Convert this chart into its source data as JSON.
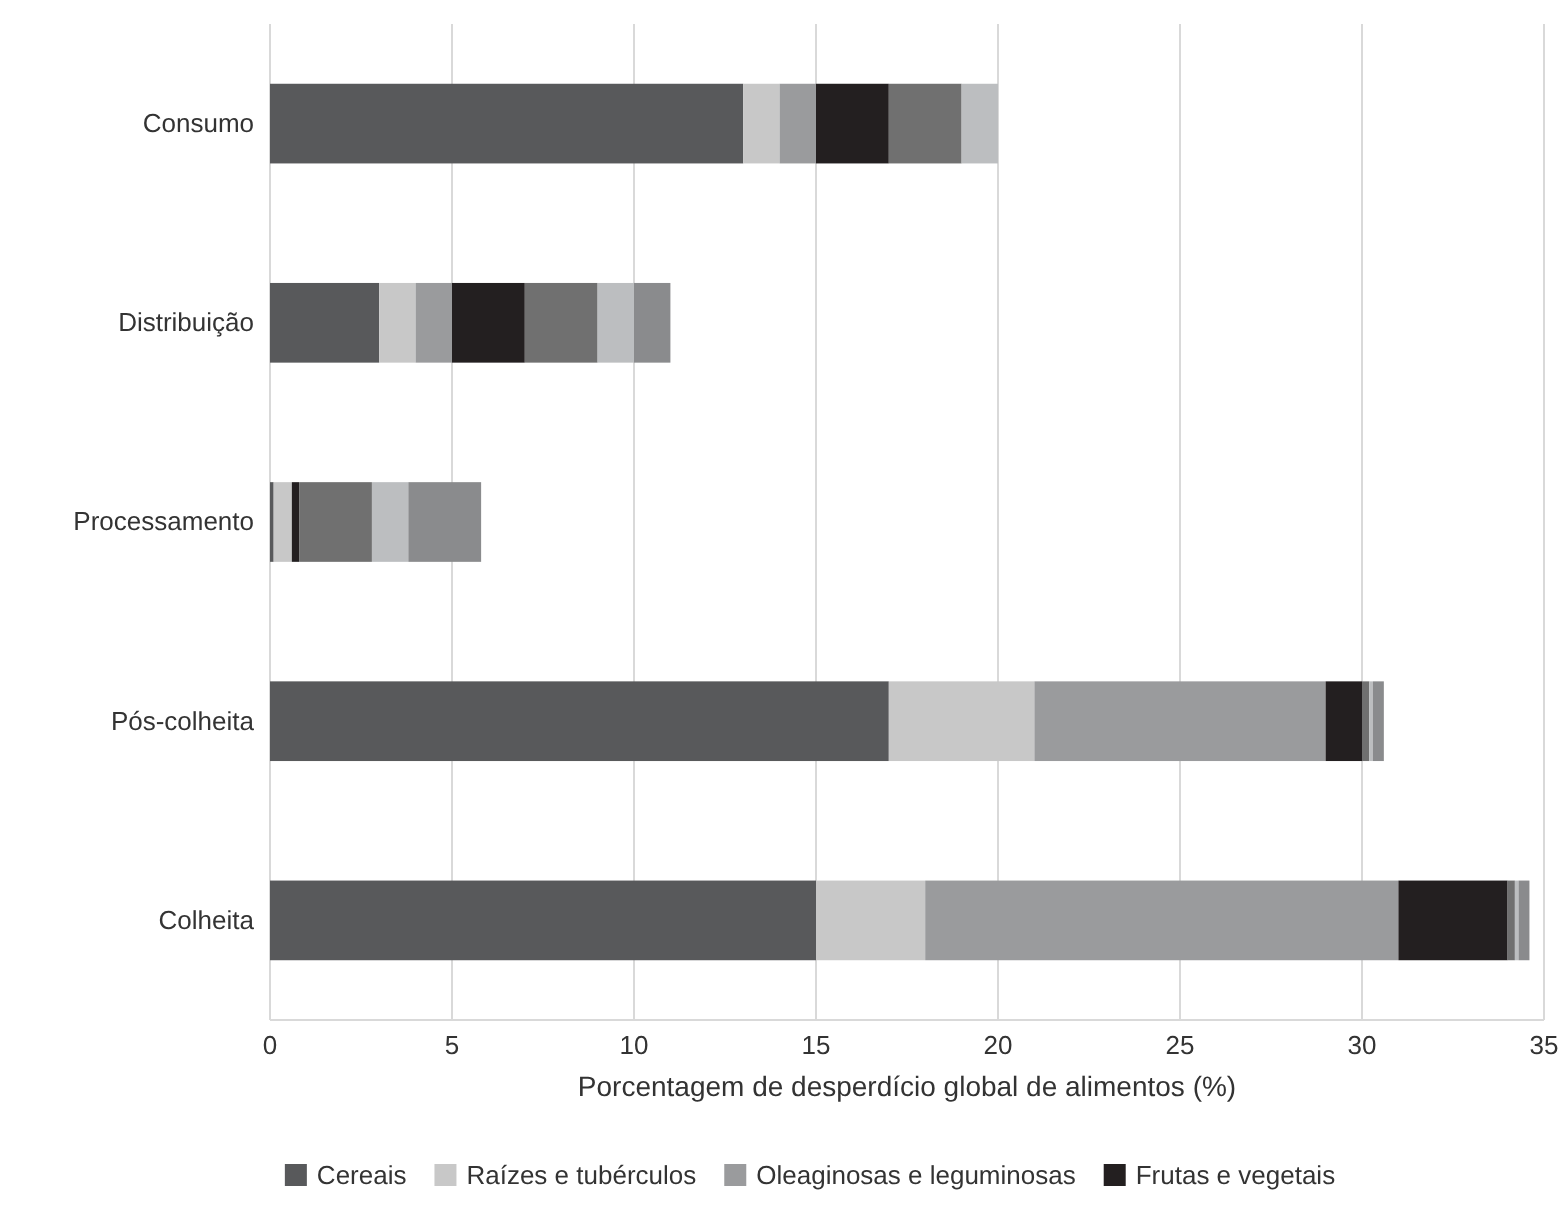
{
  "chart_data": {
    "type": "bar",
    "orientation": "horizontal",
    "stacked": true,
    "xlabel": "Porcentagem de desperdício global de alimentos  (%)",
    "categories": [
      "Consumo",
      "Distribuição",
      "Processamento",
      "Pós-colheita",
      "Colheita"
    ],
    "series": [
      {
        "name": "Cereais",
        "color": "#58595b",
        "values": [
          13,
          3,
          0.1,
          17,
          15
        ]
      },
      {
        "name": "Raízes e tubérculos",
        "color": "#c8c8c8",
        "values": [
          1,
          1,
          0.5,
          4,
          3
        ]
      },
      {
        "name": "Oleaginosas e leguminosas",
        "color": "#9a9b9d",
        "values": [
          1,
          1,
          0,
          8,
          13
        ]
      },
      {
        "name": "Frutas e vegetais",
        "color": "#231f20",
        "values": [
          2,
          2,
          0.2,
          1,
          3
        ]
      },
      {
        "color": "#707070",
        "values": [
          2,
          2,
          2,
          0.2,
          0.2
        ]
      },
      {
        "color": "#bcbec0",
        "values": [
          1,
          1,
          1,
          0.1,
          0.1
        ]
      },
      {
        "color": "#8a8b8d",
        "values": [
          0,
          1,
          2,
          0.3,
          0.3
        ]
      }
    ],
    "xlim": [
      0,
      35
    ],
    "xticks": [
      0,
      5,
      10,
      15,
      20,
      25,
      30,
      35
    ],
    "grid": "x",
    "legend": "bottom"
  }
}
